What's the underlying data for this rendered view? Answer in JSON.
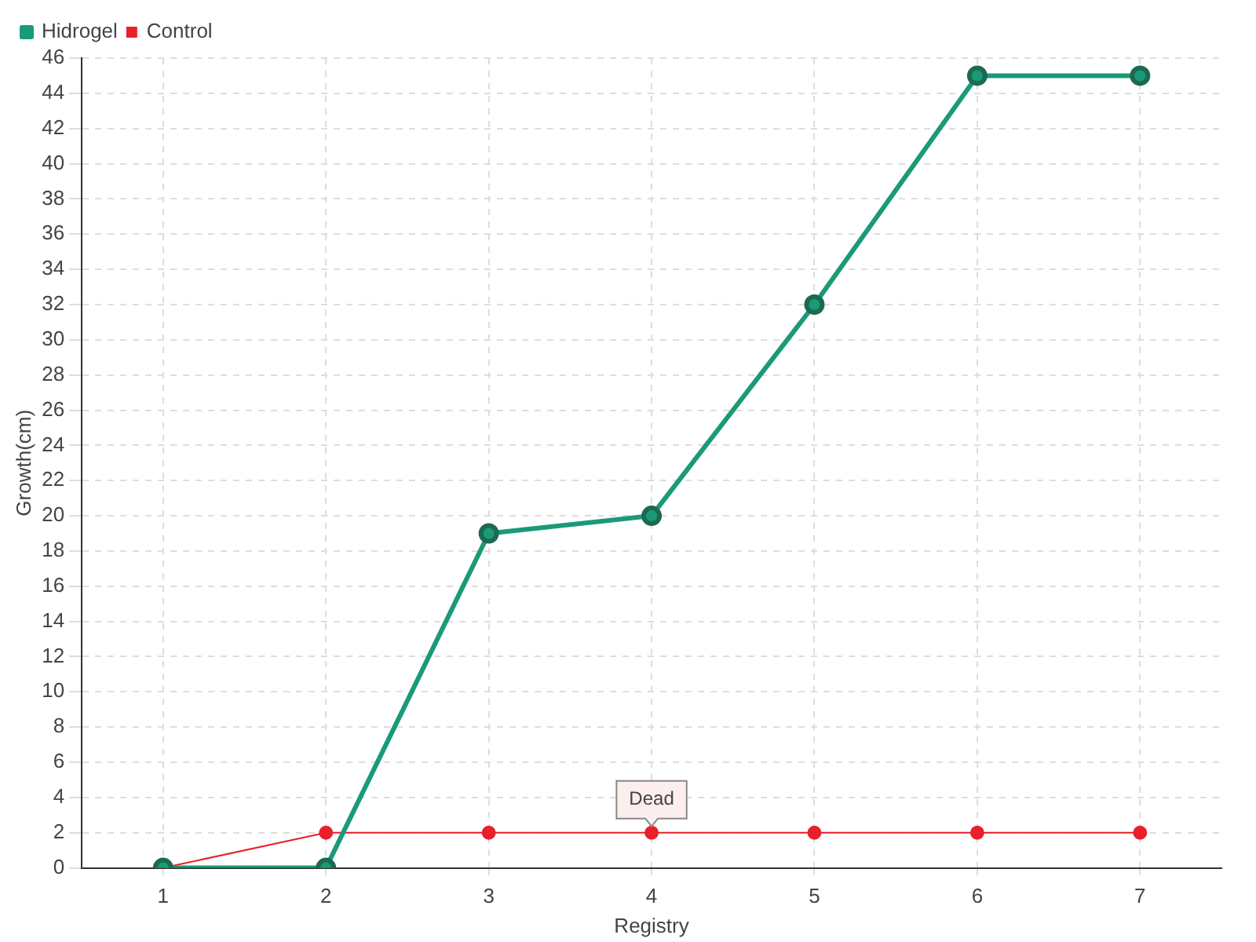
{
  "chart_data": {
    "type": "line",
    "xlabel": "Registry",
    "ylabel": "Growth(cm)",
    "categories": [
      "1",
      "2",
      "3",
      "4",
      "5",
      "6",
      "7"
    ],
    "series": [
      {
        "name": "Hidrogel",
        "color": "#1a9a78",
        "values": [
          0,
          0,
          19,
          20,
          32,
          45,
          45
        ]
      },
      {
        "name": "Control",
        "color": "#e8202a",
        "values": [
          0,
          2,
          2,
          2,
          2,
          2,
          2
        ]
      }
    ],
    "ylim": [
      0,
      46
    ],
    "yticks": [
      0,
      2,
      4,
      6,
      8,
      10,
      12,
      14,
      16,
      18,
      20,
      22,
      24,
      26,
      28,
      30,
      32,
      34,
      36,
      38,
      40,
      42,
      44,
      46
    ],
    "grid": true,
    "legend": "top left",
    "marker": "circle",
    "line_style": "solid",
    "annotations": [
      {
        "text": "Dead",
        "x": "4",
        "y": 2
      }
    ]
  }
}
